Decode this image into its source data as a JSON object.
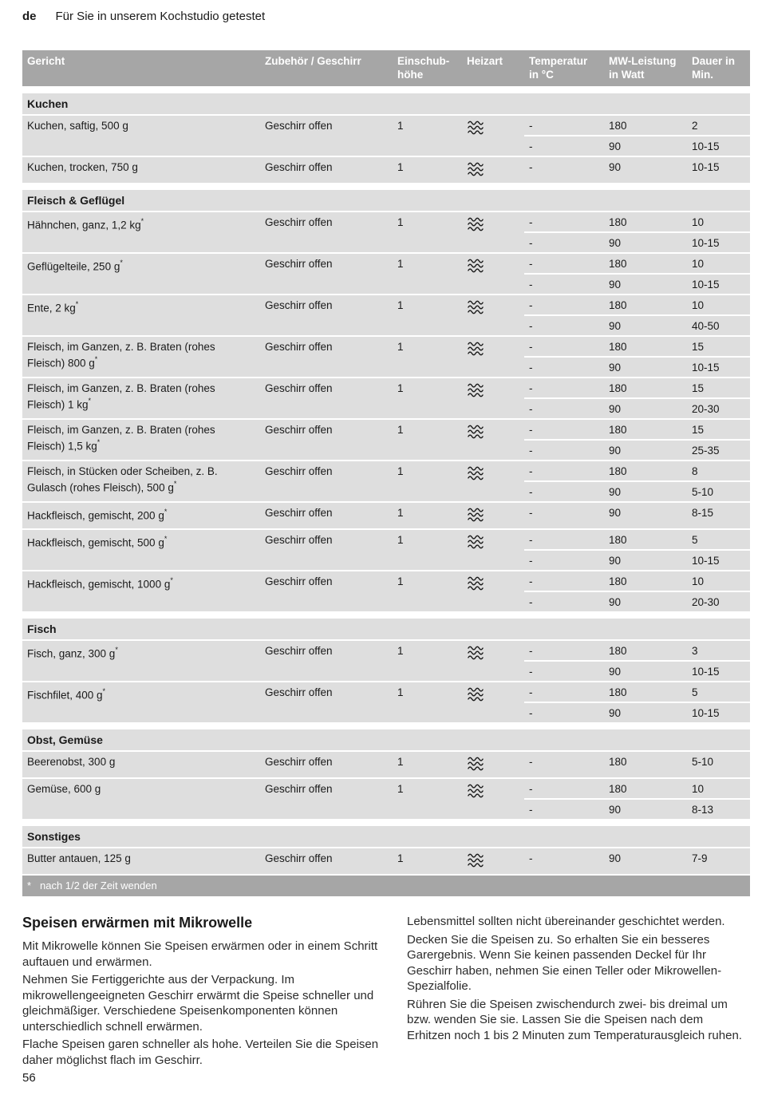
{
  "page": {
    "lang_tag": "de",
    "header_title": "Für Sie in unserem Kochstudio getestet",
    "page_number": "56"
  },
  "table": {
    "columns": [
      "Gericht",
      "Zubehör / Geschirr",
      "Einschub-\nhöhe",
      "Heizart",
      "Temperatur\nin °C",
      "MW-Leistung\nin Watt",
      "Dauer in\nMin."
    ],
    "heizart_icon_name": "microwave-icon",
    "footnote_marker": "*",
    "footnote_text": "nach 1/2 der Zeit wenden",
    "sections": [
      {
        "title": "Kuchen",
        "rows": [
          {
            "gericht": "Kuchen, saftig, 500 g",
            "zubehoer": "Geschirr offen",
            "einschub": "1",
            "heizart": "microwave",
            "settings": [
              {
                "temp": "-",
                "watt": "180",
                "dauer": "2"
              },
              {
                "temp": "-",
                "watt": "90",
                "dauer": "10-15"
              }
            ]
          },
          {
            "gericht": "Kuchen, trocken, 750 g",
            "zubehoer": "Geschirr offen",
            "einschub": "1",
            "heizart": "microwave",
            "settings": [
              {
                "temp": "-",
                "watt": "90",
                "dauer": "10-15"
              }
            ]
          }
        ]
      },
      {
        "title": "Fleisch & Geflügel",
        "rows": [
          {
            "gericht": "Hähnchen, ganz, 1,2 kg*",
            "zubehoer": "Geschirr offen",
            "einschub": "1",
            "heizart": "microwave",
            "settings": [
              {
                "temp": "-",
                "watt": "180",
                "dauer": "10"
              },
              {
                "temp": "-",
                "watt": "90",
                "dauer": "10-15"
              }
            ]
          },
          {
            "gericht": "Geflügelteile, 250 g*",
            "zubehoer": "Geschirr offen",
            "einschub": "1",
            "heizart": "microwave",
            "settings": [
              {
                "temp": "-",
                "watt": "180",
                "dauer": "10"
              },
              {
                "temp": "-",
                "watt": "90",
                "dauer": "10-15"
              }
            ]
          },
          {
            "gericht": "Ente, 2 kg*",
            "zubehoer": "Geschirr offen",
            "einschub": "1",
            "heizart": "microwave",
            "settings": [
              {
                "temp": "-",
                "watt": "180",
                "dauer": "10"
              },
              {
                "temp": "-",
                "watt": "90",
                "dauer": "40-50"
              }
            ]
          },
          {
            "gericht": "Fleisch, im Ganzen, z. B. Braten (rohes Fleisch) 800 g*",
            "zubehoer": "Geschirr offen",
            "einschub": "1",
            "heizart": "microwave",
            "settings": [
              {
                "temp": "-",
                "watt": "180",
                "dauer": "15"
              },
              {
                "temp": "-",
                "watt": "90",
                "dauer": "10-15"
              }
            ]
          },
          {
            "gericht": "Fleisch, im Ganzen, z. B. Braten (rohes Fleisch) 1 kg*",
            "zubehoer": "Geschirr offen",
            "einschub": "1",
            "heizart": "microwave",
            "settings": [
              {
                "temp": "-",
                "watt": "180",
                "dauer": "15"
              },
              {
                "temp": "-",
                "watt": "90",
                "dauer": "20-30"
              }
            ]
          },
          {
            "gericht": "Fleisch, im Ganzen, z. B. Braten (rohes Fleisch) 1,5 kg*",
            "zubehoer": "Geschirr offen",
            "einschub": "1",
            "heizart": "microwave",
            "settings": [
              {
                "temp": "-",
                "watt": "180",
                "dauer": "15"
              },
              {
                "temp": "-",
                "watt": "90",
                "dauer": "25-35"
              }
            ]
          },
          {
            "gericht": "Fleisch, in Stücken oder Scheiben, z. B. Gulasch (rohes Fleisch), 500 g*",
            "zubehoer": "Geschirr offen",
            "einschub": "1",
            "heizart": "microwave",
            "settings": [
              {
                "temp": "-",
                "watt": "180",
                "dauer": "8"
              },
              {
                "temp": "-",
                "watt": "90",
                "dauer": "5-10"
              }
            ]
          },
          {
            "gericht": "Hackfleisch, gemischt, 200 g*",
            "zubehoer": "Geschirr offen",
            "einschub": "1",
            "heizart": "microwave",
            "settings": [
              {
                "temp": "-",
                "watt": "90",
                "dauer": "8-15"
              }
            ]
          },
          {
            "gericht": "Hackfleisch, gemischt, 500 g*",
            "zubehoer": "Geschirr offen",
            "einschub": "1",
            "heizart": "microwave",
            "settings": [
              {
                "temp": "-",
                "watt": "180",
                "dauer": "5"
              },
              {
                "temp": "-",
                "watt": "90",
                "dauer": "10-15"
              }
            ]
          },
          {
            "gericht": "Hackfleisch, gemischt, 1000 g*",
            "zubehoer": "Geschirr offen",
            "einschub": "1",
            "heizart": "microwave",
            "settings": [
              {
                "temp": "-",
                "watt": "180",
                "dauer": "10"
              },
              {
                "temp": "-",
                "watt": "90",
                "dauer": "20-30"
              }
            ]
          }
        ]
      },
      {
        "title": "Fisch",
        "rows": [
          {
            "gericht": "Fisch, ganz, 300 g*",
            "zubehoer": "Geschirr offen",
            "einschub": "1",
            "heizart": "microwave",
            "settings": [
              {
                "temp": "-",
                "watt": "180",
                "dauer": "3"
              },
              {
                "temp": "-",
                "watt": "90",
                "dauer": "10-15"
              }
            ]
          },
          {
            "gericht": "Fischfilet, 400 g*",
            "zubehoer": "Geschirr offen",
            "einschub": "1",
            "heizart": "microwave",
            "settings": [
              {
                "temp": "-",
                "watt": "180",
                "dauer": "5"
              },
              {
                "temp": "-",
                "watt": "90",
                "dauer": "10-15"
              }
            ]
          }
        ]
      },
      {
        "title": "Obst, Gemüse",
        "rows": [
          {
            "gericht": "Beerenobst, 300 g",
            "zubehoer": "Geschirr offen",
            "einschub": "1",
            "heizart": "microwave",
            "settings": [
              {
                "temp": "-",
                "watt": "180",
                "dauer": "5-10"
              }
            ]
          },
          {
            "gericht": "Gemüse, 600 g",
            "zubehoer": "Geschirr offen",
            "einschub": "1",
            "heizart": "microwave",
            "settings": [
              {
                "temp": "-",
                "watt": "180",
                "dauer": "10"
              },
              {
                "temp": "-",
                "watt": "90",
                "dauer": "8-13"
              }
            ]
          }
        ]
      },
      {
        "title": "Sonstiges",
        "rows": [
          {
            "gericht": "Butter antauen, 125 g",
            "zubehoer": "Geschirr offen",
            "einschub": "1",
            "heizart": "microwave",
            "settings": [
              {
                "temp": "-",
                "watt": "90",
                "dauer": "7-9"
              }
            ]
          }
        ]
      }
    ]
  },
  "article": {
    "heading": "Speisen erwärmen mit Mikrowelle",
    "left_paragraphs": [
      "Mit Mikrowelle können Sie Speisen erwärmen oder in einem Schritt auftauen und erwärmen.",
      "Nehmen Sie Fertiggerichte aus der Verpackung. Im mikrowellengeeigneten Geschirr erwärmt die Speise schneller und gleichmäßiger. Verschiedene Speisenkomponenten können unterschiedlich schnell erwärmen.",
      "Flache Speisen garen schneller als hohe. Verteilen Sie die Speisen daher möglichst flach im Geschirr."
    ],
    "right_paragraphs": [
      "Lebensmittel sollten nicht übereinander geschichtet werden.",
      "Decken Sie die Speisen zu. So erhalten Sie ein besseres Garergebnis. Wenn Sie keinen passenden Deckel für Ihr Geschirr haben, nehmen Sie einen Teller oder Mikrowellen-Spezialfolie.",
      "Rühren Sie die Speisen zwischendurch zwei- bis dreimal um bzw. wenden Sie sie. Lassen Sie die Speisen nach dem Erhitzen noch 1 bis 2 Minuten zum Temperaturausgleich ruhen."
    ]
  }
}
